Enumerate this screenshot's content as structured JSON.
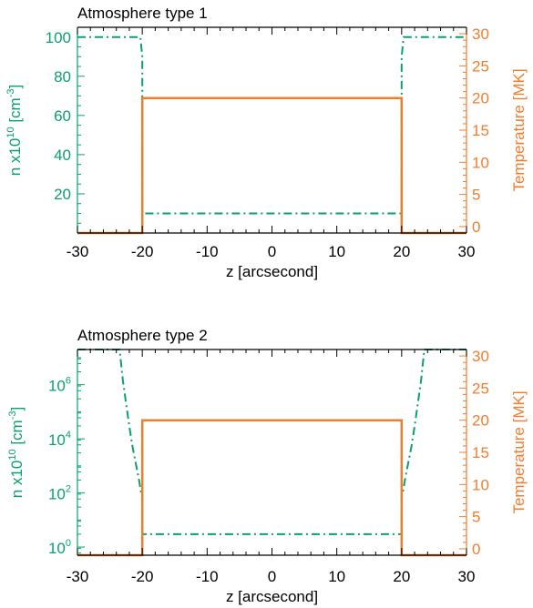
{
  "colors": {
    "density": "#0aa06e",
    "temperature": "#f07d2d",
    "frame": "#000000"
  },
  "chart_data": [
    {
      "type": "line",
      "title": "Atmosphere type 1",
      "xlabel": "z [arcsecond]",
      "ylabel_left": {
        "base": "n x10",
        "exp": "10",
        "unit": " [cm",
        "unit_exp": "-3",
        "close": "]"
      },
      "ylabel_right": "Temperature [MK]",
      "xlim": [
        -30,
        30
      ],
      "ylim_left": [
        0,
        105
      ],
      "ylim_right": [
        -1,
        31
      ],
      "yscale_left": "linear",
      "xticks": [
        -30,
        -20,
        -10,
        0,
        10,
        20,
        30
      ],
      "xtick_labels": [
        "-30",
        "-20",
        "-10",
        "0",
        "10",
        "20",
        "30"
      ],
      "yticks_left": [
        20,
        40,
        60,
        80,
        100
      ],
      "ytick_labels_left": [
        "20",
        "40",
        "60",
        "80",
        "100"
      ],
      "yticks_right": [
        0,
        5,
        10,
        15,
        20,
        25,
        30
      ],
      "ytick_labels_right": [
        "0",
        "5",
        "10",
        "15",
        "20",
        "25",
        "30"
      ],
      "grid": false,
      "series": [
        {
          "style": "dash-dot",
          "axis": "left",
          "x": [
            -30,
            -20.3,
            -20,
            -20,
            20,
            20,
            20.3,
            30
          ],
          "values": [
            100,
            100,
            90,
            10,
            10,
            90,
            100,
            100
          ]
        },
        {
          "style": "solid",
          "axis": "right",
          "x": [
            -30,
            -20,
            -20,
            20,
            20,
            30
          ],
          "values": [
            -1,
            -1,
            20,
            20,
            -1,
            -1
          ]
        }
      ]
    },
    {
      "type": "line",
      "title": "Atmosphere type 2",
      "xlabel": "z [arcsecond]",
      "ylabel_left": {
        "base": "n x10",
        "exp": "10",
        "unit": " [cm",
        "unit_exp": "-3",
        "close": "]"
      },
      "ylabel_right": "Temperature [MK]",
      "xlim": [
        -30,
        30
      ],
      "ylim_left": [
        0.5,
        20000000
      ],
      "ylim_right": [
        -1,
        31
      ],
      "yscale_left": "log",
      "xticks": [
        -30,
        -20,
        -10,
        0,
        10,
        20,
        30
      ],
      "xtick_labels": [
        "-30",
        "-20",
        "-10",
        "0",
        "10",
        "20",
        "30"
      ],
      "yticks_left": [
        1,
        100,
        10000,
        1000000
      ],
      "ytick_labels_left": [
        {
          "base": "10",
          "exp": "0"
        },
        {
          "base": "10",
          "exp": "2"
        },
        {
          "base": "10",
          "exp": "4"
        },
        {
          "base": "10",
          "exp": "6"
        }
      ],
      "yticks_right": [
        0,
        5,
        10,
        15,
        20,
        25,
        30
      ],
      "ytick_labels_right": [
        "0",
        "5",
        "10",
        "15",
        "20",
        "25",
        "30"
      ],
      "grid": false,
      "series": [
        {
          "style": "dash-dot",
          "axis": "left",
          "x": [
            -30,
            -23.5,
            -23,
            -22.5,
            -22,
            -21.5,
            -21,
            -20.5,
            -20.2,
            -20,
            -20,
            20,
            20,
            20.2,
            20.5,
            21,
            21.5,
            22,
            22.5,
            23,
            23.5,
            30
          ],
          "values": [
            20000000,
            20000000,
            1500000,
            200000,
            30000,
            5000,
            1200,
            300,
            110,
            80,
            3,
            3,
            80,
            110,
            300,
            1200,
            5000,
            30000,
            200000,
            1500000,
            20000000,
            20000000
          ]
        },
        {
          "style": "solid",
          "axis": "right",
          "x": [
            -30,
            -20,
            -20,
            20,
            20,
            30
          ],
          "values": [
            -1,
            -1,
            20,
            20,
            -1,
            -1
          ]
        }
      ]
    }
  ]
}
